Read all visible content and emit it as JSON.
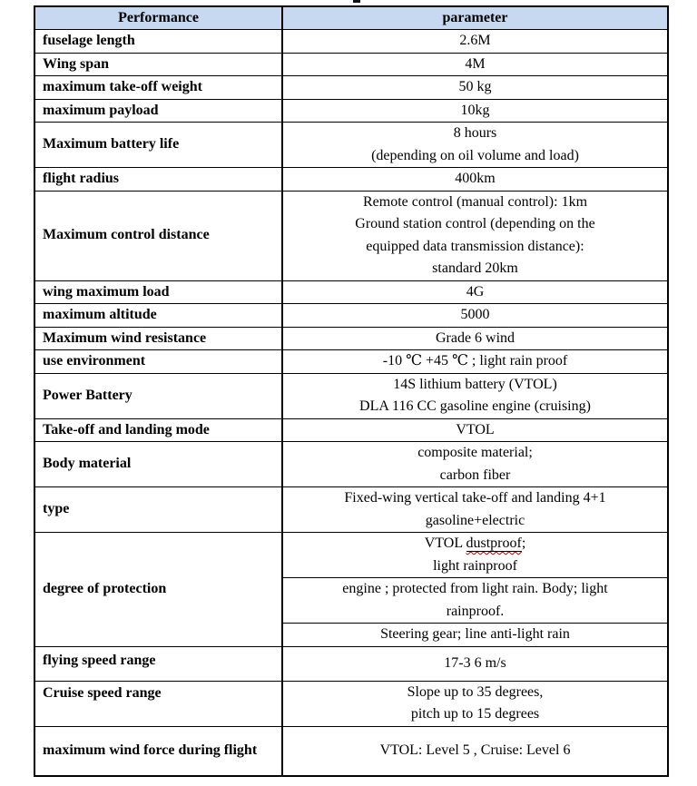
{
  "document": {
    "table": {
      "columns": [
        "Performance",
        "parameter"
      ],
      "header_bg": "#c6d9f1",
      "border_color": "#000000",
      "spellcheck_underline_color": "#c00000",
      "spellcheck_words": [
        "dustproof"
      ],
      "rows": [
        {
          "label": "fuselage length",
          "value_lines": [
            "2.6M"
          ]
        },
        {
          "label": "Wing span",
          "value_lines": [
            "4M"
          ]
        },
        {
          "label": "maximum take-off weight",
          "value_lines": [
            "50 kg"
          ]
        },
        {
          "label": "maximum payload",
          "value_lines": [
            "10kg"
          ]
        },
        {
          "label": "Maximum battery life",
          "value_lines": [
            "8 hours",
            "(depending on oil volume and load)"
          ]
        },
        {
          "label": "flight radius",
          "value_lines": [
            "400km"
          ]
        },
        {
          "label": "Maximum control distance",
          "value_lines": [
            "Remote control (manual control): 1km",
            "Ground station control (depending on the",
            "equipped data transmission distance):",
            "standard 20km"
          ]
        },
        {
          "label": "wing maximum load",
          "value_lines": [
            "4G"
          ]
        },
        {
          "label": "maximum altitude",
          "value_lines": [
            "5000"
          ]
        },
        {
          "label": "Maximum wind resistance",
          "value_lines": [
            "Grade 6 wind"
          ]
        },
        {
          "label": "use environment",
          "value_lines": [
            "-10 ℃ +45 ℃ ; light rain proof"
          ]
        },
        {
          "label": "Power Battery",
          "value_lines": [
            "14S lithium battery (VTOL)",
            "DLA 116 CC gasoline engine (cruising)"
          ]
        },
        {
          "label": "Take-off and landing mode",
          "value_lines": [
            "VTOL"
          ]
        },
        {
          "label": "Body material",
          "value_lines": [
            "composite material;",
            "carbon fiber"
          ]
        },
        {
          "label": "type",
          "value_lines": [
            "Fixed-wing vertical take-off and landing 4+1",
            "gasoline+electric"
          ]
        },
        {
          "label": "degree of protection",
          "sub_rows": [
            {
              "value_lines": [
                "VTOL dustproof;",
                "light rainproof"
              ]
            },
            {
              "value_lines": [
                "engine ; protected from light rain. Body; light",
                "rainproof."
              ]
            },
            {
              "value_lines": [
                "Steering gear; line anti-light rain"
              ]
            }
          ]
        },
        {
          "label": "flying speed range",
          "value_lines": [
            "17-3 6 m/s"
          ]
        },
        {
          "label": "Cruise speed range",
          "value_lines": [
            "Slope up to 35 degrees,",
            "pitch up to 15 degrees"
          ]
        },
        {
          "label": "maximum wind force during flight",
          "value_lines": [
            "VTOL: Level 5 , Cruise: Level 6"
          ]
        }
      ]
    }
  }
}
